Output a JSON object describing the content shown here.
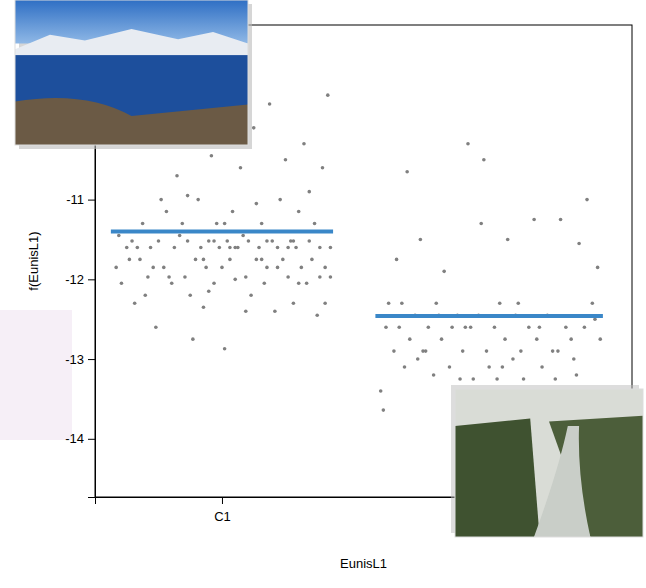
{
  "chart_data": {
    "type": "scatter",
    "x_label": "EunisL1",
    "y_label": "f(EunisL1)",
    "xlim": [
      0.52,
      2.55
    ],
    "ylim": [
      -14.73,
      -8.81
    ],
    "xticks": [
      {
        "value": 1,
        "label": "C1"
      }
    ],
    "yticks": [
      -14,
      -13,
      -12,
      -11
    ],
    "series": [
      {
        "type": "scatter",
        "color": "#808080",
        "marker": "circle",
        "x": [
          0.6,
          0.62,
          0.64,
          0.66,
          0.67,
          0.69,
          0.7,
          0.72,
          0.73,
          0.75,
          0.76,
          0.78,
          0.79,
          0.81,
          0.82,
          0.83,
          0.84,
          0.86,
          0.87,
          0.88,
          0.9,
          0.91,
          0.92,
          0.93,
          0.94,
          0.95,
          0.96,
          0.97,
          0.98,
          0.99,
          1.0,
          1.01,
          1.02,
          1.03,
          1.04,
          1.05,
          1.06,
          1.07,
          1.08,
          1.09,
          1.1,
          1.11,
          1.12,
          1.13,
          1.14,
          1.15,
          1.16,
          1.17,
          1.18,
          1.19,
          1.2,
          1.21,
          1.22,
          1.23,
          1.24,
          1.25,
          1.26,
          1.27,
          1.28,
          1.29,
          1.3,
          1.31,
          1.32,
          1.33,
          1.34,
          1.35,
          1.36,
          1.37,
          1.38,
          1.39,
          1.4,
          1.41,
          0.61,
          0.65,
          0.71,
          0.77,
          0.8,
          0.85,
          0.89,
          0.93,
          0.97,
          1.01,
          1.05,
          1.09,
          1.13,
          1.17,
          1.21,
          1.25,
          1.29,
          1.33,
          1.37,
          1.41,
          0.68,
          0.74,
          0.87,
          0.95,
          1.03,
          1.15,
          1.27,
          1.39
        ],
        "values": [
          -11.85,
          -12.05,
          -11.6,
          -11.52,
          -12.3,
          -11.75,
          -11.3,
          -11.97,
          -11.6,
          -12.6,
          -11.52,
          -11.85,
          -11.15,
          -12.05,
          -11.6,
          -10.7,
          -11.45,
          -11.97,
          -11.52,
          -12.2,
          -11.75,
          -11.0,
          -11.6,
          -12.35,
          -11.85,
          -11.52,
          -10.45,
          -12.05,
          -11.3,
          -11.6,
          -11.85,
          -12.87,
          -11.52,
          -11.75,
          -11.15,
          -12.0,
          -11.6,
          -10.6,
          -11.45,
          -11.97,
          -11.52,
          -12.2,
          -10.1,
          -11.75,
          -11.6,
          -11.3,
          -12.05,
          -11.85,
          -9.8,
          -11.52,
          -12.4,
          -11.6,
          -11.0,
          -11.75,
          -10.5,
          -11.97,
          -11.52,
          -12.3,
          -11.6,
          -11.15,
          -11.85,
          -10.3,
          -12.05,
          -11.52,
          -11.75,
          -11.3,
          -12.45,
          -11.6,
          -10.6,
          -11.85,
          -9.69,
          -11.97,
          -11.45,
          -11.75,
          -12.2,
          -11.0,
          -11.97,
          -11.3,
          -12.75,
          -11.75,
          -11.52,
          -11.3,
          -11.6,
          -12.4,
          -11.05,
          -11.52,
          -11.85,
          -11.6,
          -12.05,
          -10.9,
          -11.97,
          -11.6,
          -11.6,
          -11.85,
          -10.95,
          -12.15,
          -11.6,
          -11.75,
          -11.52,
          -12.3
        ]
      },
      {
        "type": "scatter",
        "color": "#808080",
        "marker": "circle",
        "x": [
          1.6,
          1.61,
          1.63,
          1.65,
          1.66,
          1.67,
          1.69,
          1.7,
          1.71,
          1.73,
          1.74,
          1.75,
          1.77,
          1.78,
          1.8,
          1.81,
          1.83,
          1.84,
          1.86,
          1.87,
          1.89,
          1.9,
          1.91,
          1.93,
          1.94,
          1.95,
          1.97,
          1.98,
          2.0,
          2.01,
          2.03,
          2.04,
          2.05,
          2.07,
          2.08,
          2.1,
          2.11,
          2.13,
          2.14,
          2.16,
          2.18,
          2.19,
          2.21,
          2.23,
          2.25,
          2.26,
          2.28,
          2.3,
          2.32,
          2.33,
          2.35,
          2.37,
          2.38,
          2.4,
          2.42,
          2.43,
          1.62,
          1.68,
          1.76,
          1.82,
          1.92,
          1.99,
          2.06,
          2.12,
          2.2,
          2.27,
          2.34,
          2.41
        ],
        "values": [
          -13.4,
          -13.64,
          -12.3,
          -12.9,
          -11.75,
          -12.6,
          -13.1,
          -10.65,
          -12.75,
          -12.45,
          -13.0,
          -11.5,
          -12.9,
          -12.6,
          -13.2,
          -12.3,
          -12.75,
          -11.9,
          -13.1,
          -12.6,
          -12.45,
          -13.25,
          -12.9,
          -10.3,
          -12.6,
          -13.25,
          -12.45,
          -11.3,
          -12.9,
          -13.1,
          -12.6,
          -13.25,
          -12.3,
          -12.75,
          -11.5,
          -13.0,
          -12.45,
          -12.9,
          -13.25,
          -12.6,
          -11.25,
          -12.75,
          -13.1,
          -12.45,
          -12.9,
          -13.25,
          -11.25,
          -12.6,
          -12.75,
          -13.0,
          -11.55,
          -12.6,
          -11.0,
          -12.3,
          -11.85,
          -12.75,
          -12.6,
          -12.3,
          -12.9,
          -12.45,
          -12.6,
          -10.5,
          -13.1,
          -12.3,
          -12.6,
          -12.9,
          -13.2,
          -12.5
        ]
      },
      {
        "type": "line",
        "color": "#3a87c8",
        "line_style": "solid",
        "x": [
          0.58,
          1.42
        ],
        "values": [
          -11.4,
          -11.4
        ]
      },
      {
        "type": "line",
        "color": "#3a87c8",
        "line_style": "solid",
        "x": [
          1.58,
          2.44
        ],
        "values": [
          -12.46,
          -12.46
        ]
      }
    ]
  }
}
